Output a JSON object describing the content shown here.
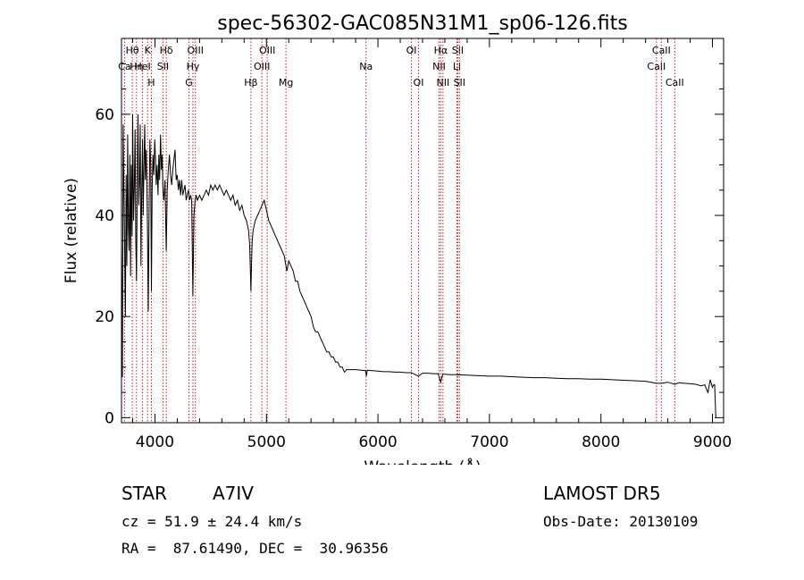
{
  "chart_data": {
    "type": "line",
    "title": "spec-56302-GAC085N31M1_sp06-126.fits",
    "xlabel": "Wavelength (Å)",
    "ylabel": "Flux (relative)",
    "xlim": [
      3700,
      9100
    ],
    "ylim": [
      -1,
      75
    ],
    "x_ticks": [
      4000,
      5000,
      6000,
      7000,
      8000,
      9000
    ],
    "y_ticks": [
      0,
      20,
      40,
      60
    ],
    "grid": false,
    "series_color": "#000000",
    "line_color": "#c81e1e",
    "series": [
      {
        "points": [
          [
            3700,
            35
          ],
          [
            3708,
            8
          ],
          [
            3715,
            58
          ],
          [
            3722,
            45
          ],
          [
            3728,
            34
          ],
          [
            3735,
            20
          ],
          [
            3742,
            48
          ],
          [
            3748,
            30
          ],
          [
            3755,
            56
          ],
          [
            3762,
            38
          ],
          [
            3768,
            33
          ],
          [
            3775,
            52
          ],
          [
            3782,
            28
          ],
          [
            3788,
            50
          ],
          [
            3795,
            36
          ],
          [
            3800,
            60
          ],
          [
            3808,
            39
          ],
          [
            3815,
            46
          ],
          [
            3822,
            57
          ],
          [
            3828,
            35
          ],
          [
            3835,
            27
          ],
          [
            3842,
            49
          ],
          [
            3848,
            60
          ],
          [
            3855,
            42
          ],
          [
            3862,
            47
          ],
          [
            3868,
            58
          ],
          [
            3875,
            30
          ],
          [
            3882,
            45
          ],
          [
            3889,
            55
          ],
          [
            3895,
            40
          ],
          [
            3902,
            50
          ],
          [
            3908,
            58
          ],
          [
            3915,
            47
          ],
          [
            3922,
            53
          ],
          [
            3928,
            45
          ],
          [
            3934,
            36
          ],
          [
            3940,
            21
          ],
          [
            3948,
            43
          ],
          [
            3955,
            55
          ],
          [
            3962,
            50
          ],
          [
            3968,
            25
          ],
          [
            3975,
            45
          ],
          [
            3982,
            52
          ],
          [
            3990,
            48
          ],
          [
            3998,
            55
          ],
          [
            4005,
            51
          ],
          [
            4012,
            46
          ],
          [
            4020,
            50
          ],
          [
            4028,
            44
          ],
          [
            4035,
            52
          ],
          [
            4042,
            47
          ],
          [
            4050,
            56
          ],
          [
            4058,
            49
          ],
          [
            4065,
            52
          ],
          [
            4072,
            45
          ],
          [
            4080,
            43
          ],
          [
            4090,
            47
          ],
          [
            4101,
            33
          ],
          [
            4110,
            45
          ],
          [
            4120,
            49
          ],
          [
            4130,
            52
          ],
          [
            4140,
            48
          ],
          [
            4150,
            46
          ],
          [
            4160,
            49
          ],
          [
            4170,
            51
          ],
          [
            4180,
            53
          ],
          [
            4190,
            47
          ],
          [
            4200,
            48
          ],
          [
            4210,
            45
          ],
          [
            4220,
            47
          ],
          [
            4230,
            44
          ],
          [
            4240,
            47
          ],
          [
            4250,
            44
          ],
          [
            4260,
            45
          ],
          [
            4270,
            46
          ],
          [
            4280,
            43
          ],
          [
            4290,
            44
          ],
          [
            4300,
            45
          ],
          [
            4310,
            43
          ],
          [
            4320,
            44
          ],
          [
            4330,
            43
          ],
          [
            4340,
            24
          ],
          [
            4350,
            40
          ],
          [
            4360,
            43
          ],
          [
            4370,
            44
          ],
          [
            4380,
            43
          ],
          [
            4400,
            44
          ],
          [
            4420,
            43
          ],
          [
            4440,
            44
          ],
          [
            4460,
            45
          ],
          [
            4480,
            44
          ],
          [
            4500,
            46
          ],
          [
            4520,
            45
          ],
          [
            4540,
            46
          ],
          [
            4560,
            45
          ],
          [
            4580,
            46
          ],
          [
            4600,
            45
          ],
          [
            4620,
            44
          ],
          [
            4640,
            45
          ],
          [
            4660,
            44
          ],
          [
            4680,
            43
          ],
          [
            4700,
            44
          ],
          [
            4720,
            42
          ],
          [
            4740,
            43
          ],
          [
            4760,
            41
          ],
          [
            4780,
            42
          ],
          [
            4800,
            40
          ],
          [
            4820,
            39
          ],
          [
            4840,
            37
          ],
          [
            4850,
            34
          ],
          [
            4856,
            29
          ],
          [
            4861,
            25
          ],
          [
            4866,
            30
          ],
          [
            4872,
            35
          ],
          [
            4880,
            37
          ],
          [
            4900,
            39
          ],
          [
            4920,
            40
          ],
          [
            4940,
            41
          ],
          [
            4960,
            42
          ],
          [
            4980,
            43
          ],
          [
            5000,
            41
          ],
          [
            5020,
            39
          ],
          [
            5040,
            38
          ],
          [
            5060,
            37
          ],
          [
            5080,
            36
          ],
          [
            5100,
            35
          ],
          [
            5120,
            34
          ],
          [
            5140,
            33
          ],
          [
            5160,
            32
          ],
          [
            5183,
            29
          ],
          [
            5200,
            31
          ],
          [
            5220,
            30
          ],
          [
            5240,
            29
          ],
          [
            5260,
            27
          ],
          [
            5280,
            27
          ],
          [
            5300,
            25
          ],
          [
            5320,
            24
          ],
          [
            5340,
            23
          ],
          [
            5360,
            22
          ],
          [
            5380,
            21
          ],
          [
            5400,
            20
          ],
          [
            5420,
            18
          ],
          [
            5440,
            17
          ],
          [
            5460,
            17
          ],
          [
            5480,
            16
          ],
          [
            5500,
            15
          ],
          [
            5520,
            14
          ],
          [
            5540,
            13
          ],
          [
            5560,
            13
          ],
          [
            5580,
            12
          ],
          [
            5600,
            12
          ],
          [
            5620,
            11
          ],
          [
            5640,
            11
          ],
          [
            5660,
            10
          ],
          [
            5680,
            10
          ],
          [
            5700,
            9
          ],
          [
            5720,
            9.5
          ],
          [
            5750,
            9.5
          ],
          [
            5800,
            9.5
          ],
          [
            5850,
            9.4
          ],
          [
            5890,
            9.3
          ],
          [
            5896,
            8.2
          ],
          [
            5905,
            9.4
          ],
          [
            5950,
            9.3
          ],
          [
            6000,
            9.2
          ],
          [
            6050,
            9.1
          ],
          [
            6100,
            9.1
          ],
          [
            6150,
            9.0
          ],
          [
            6200,
            9.0
          ],
          [
            6250,
            8.9
          ],
          [
            6300,
            8.9
          ],
          [
            6364,
            8.2
          ],
          [
            6400,
            8.8
          ],
          [
            6450,
            8.8
          ],
          [
            6500,
            8.7
          ],
          [
            6540,
            8.7
          ],
          [
            6563,
            7.0
          ],
          [
            6580,
            8.6
          ],
          [
            6600,
            8.6
          ],
          [
            6650,
            8.5
          ],
          [
            6700,
            8.5
          ],
          [
            6800,
            8.4
          ],
          [
            6900,
            8.3
          ],
          [
            7000,
            8.2
          ],
          [
            7100,
            8.2
          ],
          [
            7200,
            8.1
          ],
          [
            7300,
            8.0
          ],
          [
            7400,
            7.9
          ],
          [
            7500,
            7.9
          ],
          [
            7600,
            7.8
          ],
          [
            7700,
            7.7
          ],
          [
            7800,
            7.7
          ],
          [
            7900,
            7.6
          ],
          [
            8000,
            7.6
          ],
          [
            8100,
            7.5
          ],
          [
            8200,
            7.4
          ],
          [
            8300,
            7.3
          ],
          [
            8400,
            7.2
          ],
          [
            8498,
            6.8
          ],
          [
            8542,
            6.8
          ],
          [
            8600,
            7.0
          ],
          [
            8662,
            6.6
          ],
          [
            8700,
            6.9
          ],
          [
            8800,
            6.7
          ],
          [
            8850,
            6.6
          ],
          [
            8900,
            6.3
          ],
          [
            8930,
            6.5
          ],
          [
            8960,
            5.0
          ],
          [
            8980,
            7.5
          ],
          [
            9000,
            6.0
          ],
          [
            9010,
            6.5
          ],
          [
            9020,
            6.5
          ],
          [
            9030,
            0
          ]
        ]
      }
    ],
    "lines": [
      {
        "label": "Ca",
        "display": "CaII",
        "wavelength": 3727,
        "row": 1
      },
      {
        "label": "Hθ",
        "wavelength": 3797,
        "row": 0
      },
      {
        "label": "Hη",
        "wavelength": 3835,
        "row": 1
      },
      {
        "label": "HeI",
        "wavelength": 3889,
        "row": 1
      },
      {
        "label": "K",
        "wavelength": 3934,
        "row": 0
      },
      {
        "label": "H",
        "wavelength": 3968,
        "row": 2
      },
      {
        "label": "SII",
        "wavelength": 4072,
        "row": 1
      },
      {
        "label": "Hδ",
        "wavelength": 4102,
        "row": 0
      },
      {
        "label": "Hγ",
        "wavelength": 4341,
        "row": 1
      },
      {
        "label": "G",
        "wavelength": 4305,
        "row": 2
      },
      {
        "label": "OIII",
        "wavelength": 4363,
        "row": 0
      },
      {
        "label": "Hβ",
        "wavelength": 4861,
        "row": 2
      },
      {
        "label": "OIII",
        "wavelength": 4959,
        "row": 1
      },
      {
        "label": "OIII",
        "wavelength": 5007,
        "row": 0
      },
      {
        "label": "Mg",
        "wavelength": 5175,
        "row": 2
      },
      {
        "label": "Na",
        "wavelength": 5893,
        "row": 1
      },
      {
        "label": "OI",
        "wavelength": 6300,
        "row": 0
      },
      {
        "label": "OI",
        "wavelength": 6364,
        "row": 2
      },
      {
        "label": "NII",
        "wavelength": 6548,
        "row": 1
      },
      {
        "label": "Hα",
        "wavelength": 6563,
        "row": 0
      },
      {
        "label": "NII",
        "wavelength": 6583,
        "row": 2
      },
      {
        "label": "Li",
        "wavelength": 6708,
        "row": 1
      },
      {
        "label": "SII",
        "wavelength": 6716,
        "row": 0
      },
      {
        "label": "SII",
        "wavelength": 6731,
        "row": 2
      },
      {
        "label": "CaII",
        "wavelength": 8498,
        "row": 1
      },
      {
        "label": "CaII",
        "wavelength": 8542,
        "row": 0
      },
      {
        "label": "CaII",
        "wavelength": 8662,
        "row": 2
      }
    ]
  },
  "info": {
    "class": "STAR",
    "subclass": "A7IV",
    "survey": "LAMOST DR5",
    "cz": "cz = 51.9 ± 24.4 km/s",
    "obs_date": "Obs-Date: 20130109",
    "radec": "RA =  87.61490, DEC =  30.96356"
  }
}
